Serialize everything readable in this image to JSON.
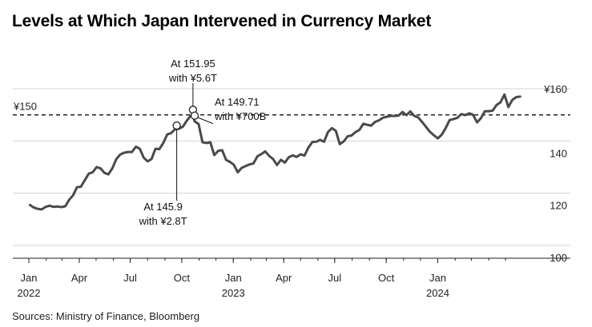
{
  "title": "Levels at Which Japan Intervened in Currency Market",
  "source": "Sources: Ministry of Finance, Bloomberg",
  "chart_data": {
    "type": "line",
    "title": "Levels at Which Japan Intervened in Currency Market",
    "xlabel": "",
    "ylabel": "",
    "ylim": [
      100,
      160
    ],
    "xlim": [
      "2022-01-01",
      "2024-05-28"
    ],
    "grid": true,
    "y_ticks": [
      {
        "value": 100,
        "label": "100"
      },
      {
        "value": 120,
        "label": "120"
      },
      {
        "value": 140,
        "label": "140"
      },
      {
        "value": 160,
        "label": "¥160"
      }
    ],
    "x_ticks": [
      {
        "date": "2022-01-01",
        "label": "Jan",
        "year": "2022"
      },
      {
        "date": "2022-04-01",
        "label": "Apr",
        "year": ""
      },
      {
        "date": "2022-07-01",
        "label": "Jul",
        "year": ""
      },
      {
        "date": "2022-10-01",
        "label": "Oct",
        "year": ""
      },
      {
        "date": "2023-01-01",
        "label": "Jan",
        "year": "2023"
      },
      {
        "date": "2023-04-01",
        "label": "Apr",
        "year": ""
      },
      {
        "date": "2023-07-01",
        "label": "Jul",
        "year": ""
      },
      {
        "date": "2023-10-01",
        "label": "Oct",
        "year": ""
      },
      {
        "date": "2024-01-01",
        "label": "Jan",
        "year": "2024"
      }
    ],
    "reference_line": {
      "value": 150,
      "label": "¥150",
      "style": "dashed"
    },
    "series": [
      {
        "color": "#4a4a4a",
        "x": [
          "2022-01-03",
          "2022-01-10",
          "2022-01-17",
          "2022-01-24",
          "2022-01-31",
          "2022-02-07",
          "2022-02-14",
          "2022-02-21",
          "2022-02-28",
          "2022-03-07",
          "2022-03-14",
          "2022-03-21",
          "2022-03-28",
          "2022-04-04",
          "2022-04-11",
          "2022-04-18",
          "2022-04-25",
          "2022-05-02",
          "2022-05-09",
          "2022-05-16",
          "2022-05-23",
          "2022-05-30",
          "2022-06-06",
          "2022-06-13",
          "2022-06-20",
          "2022-06-27",
          "2022-07-04",
          "2022-07-11",
          "2022-07-18",
          "2022-07-25",
          "2022-08-01",
          "2022-08-08",
          "2022-08-15",
          "2022-08-22",
          "2022-08-29",
          "2022-09-05",
          "2022-09-12",
          "2022-09-19",
          "2022-09-26",
          "2022-10-03",
          "2022-10-10",
          "2022-10-17",
          "2022-10-21",
          "2022-10-24",
          "2022-10-31",
          "2022-11-07",
          "2022-11-14",
          "2022-11-21",
          "2022-11-28",
          "2022-12-05",
          "2022-12-12",
          "2022-12-19",
          "2022-12-26",
          "2023-01-02",
          "2023-01-09",
          "2023-01-16",
          "2023-01-23",
          "2023-01-30",
          "2023-02-06",
          "2023-02-13",
          "2023-02-20",
          "2023-02-27",
          "2023-03-06",
          "2023-03-13",
          "2023-03-20",
          "2023-03-27",
          "2023-04-03",
          "2023-04-10",
          "2023-04-17",
          "2023-04-24",
          "2023-05-01",
          "2023-05-08",
          "2023-05-15",
          "2023-05-22",
          "2023-05-29",
          "2023-06-05",
          "2023-06-12",
          "2023-06-19",
          "2023-06-26",
          "2023-07-03",
          "2023-07-10",
          "2023-07-17",
          "2023-07-24",
          "2023-07-31",
          "2023-08-07",
          "2023-08-14",
          "2023-08-21",
          "2023-08-28",
          "2023-09-04",
          "2023-09-11",
          "2023-09-18",
          "2023-09-25",
          "2023-10-02",
          "2023-10-09",
          "2023-10-16",
          "2023-10-23",
          "2023-10-30",
          "2023-11-06",
          "2023-11-13",
          "2023-11-20",
          "2023-11-27",
          "2023-12-04",
          "2023-12-11",
          "2023-12-18",
          "2023-12-25",
          "2024-01-01",
          "2024-01-08",
          "2024-01-15",
          "2024-01-22",
          "2024-01-29",
          "2024-02-05",
          "2024-02-12",
          "2024-02-19",
          "2024-02-26",
          "2024-03-04",
          "2024-03-11",
          "2024-03-18",
          "2024-03-25",
          "2024-04-01",
          "2024-04-08",
          "2024-04-15",
          "2024-04-22",
          "2024-04-29",
          "2024-05-06",
          "2024-05-13",
          "2024-05-20",
          "2024-05-27"
        ],
        "values": [
          115.5,
          114.5,
          114.0,
          113.8,
          114.8,
          115.2,
          114.8,
          114.9,
          114.7,
          115.0,
          117.5,
          119.2,
          122.3,
          122.5,
          125.0,
          127.5,
          128.0,
          130.0,
          129.5,
          127.8,
          127.2,
          129.5,
          133.0,
          134.8,
          135.5,
          135.8,
          135.8,
          137.8,
          137.0,
          133.6,
          132.2,
          133.1,
          137.0,
          136.9,
          139.2,
          142.5,
          143.0,
          144.5,
          144.7,
          145.5,
          147.8,
          149.7,
          149.9,
          147.5,
          146.5,
          139.5,
          139.2,
          139.5,
          134.6,
          136.2,
          136.5,
          132.8,
          132.0,
          130.9,
          128.0,
          129.7,
          130.4,
          131.0,
          131.4,
          134.1,
          135.0,
          136.0,
          134.3,
          133.1,
          130.8,
          132.8,
          131.7,
          133.8,
          134.5,
          133.9,
          134.9,
          134.4,
          137.5,
          139.6,
          139.7,
          140.4,
          139.7,
          143.4,
          144.9,
          143.9,
          138.8,
          139.8,
          141.8,
          142.1,
          143.4,
          144.2,
          146.6,
          146.2,
          145.9,
          147.3,
          147.9,
          148.9,
          149.3,
          149.6,
          149.6,
          149.7,
          151.1,
          149.9,
          151.3,
          149.6,
          149.0,
          147.3,
          145.4,
          143.5,
          142.2,
          141.0,
          142.4,
          144.9,
          148.0,
          148.4,
          148.9,
          150.3,
          149.9,
          150.6,
          150.0,
          147.1,
          148.7,
          151.4,
          151.4,
          151.6,
          153.8,
          154.8,
          157.8,
          153.0,
          155.7,
          156.8,
          157.0
        ]
      }
    ],
    "annotations": [
      {
        "date": "2022-09-22",
        "value": 145.9,
        "line1": "At 145.9",
        "line2": "with ¥2.8T",
        "position": "below"
      },
      {
        "date": "2022-10-21",
        "value": 151.95,
        "line1": "At 151.95",
        "line2": "with ¥5.6T",
        "position": "above"
      },
      {
        "date": "2022-10-24",
        "value": 149.71,
        "line1": "At 149.71",
        "line2": "with ¥700B",
        "position": "right"
      }
    ]
  }
}
